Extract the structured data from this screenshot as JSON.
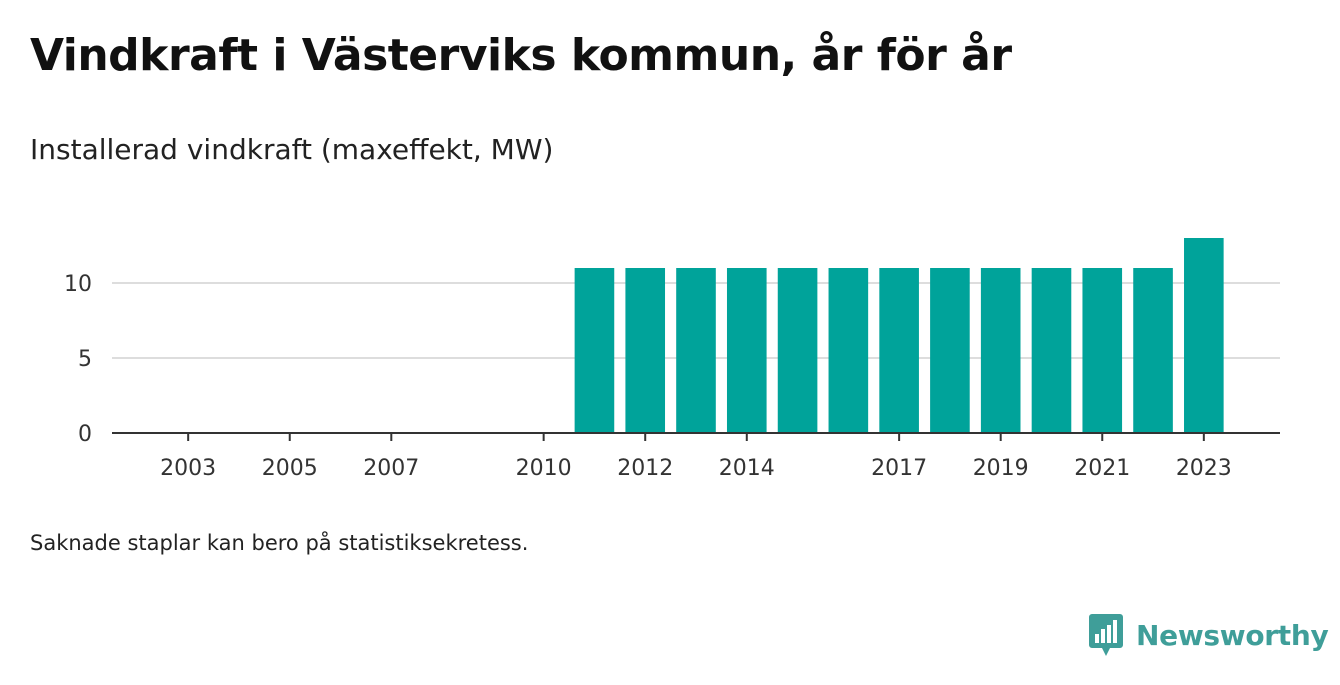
{
  "title": "Vindkraft i Västerviks kommun, år för år",
  "subtitle": "Installerad vindkraft (maxeffekt, MW)",
  "footnote": "Saknade staplar kan bero på statistiksekretess.",
  "brand": {
    "name": "Newsworthy",
    "logo_icon": "newsworthy-chart-bubble-icon",
    "color": "#3f9e99"
  },
  "colors": {
    "bar": "#00a39a",
    "grid": "#dddddd",
    "axis": "#333333"
  },
  "chart_data": {
    "type": "bar",
    "title": "Vindkraft i Västerviks kommun, år för år",
    "subtitle": "Installerad vindkraft (maxeffekt, MW)",
    "xlabel": "",
    "ylabel": "",
    "x": [
      2011,
      2012,
      2013,
      2014,
      2015,
      2016,
      2017,
      2018,
      2019,
      2020,
      2021,
      2022,
      2023
    ],
    "values": [
      11,
      11,
      11,
      11,
      11,
      11,
      11,
      11,
      11,
      11,
      11,
      11,
      13
    ],
    "xlim": [
      2001.5,
      2024.5
    ],
    "ylim": [
      0,
      14
    ],
    "x_ticks": [
      2003,
      2005,
      2007,
      2010,
      2012,
      2014,
      2017,
      2019,
      2021,
      2023
    ],
    "y_ticks": [
      0,
      5,
      10
    ],
    "grid": "horizontal"
  }
}
